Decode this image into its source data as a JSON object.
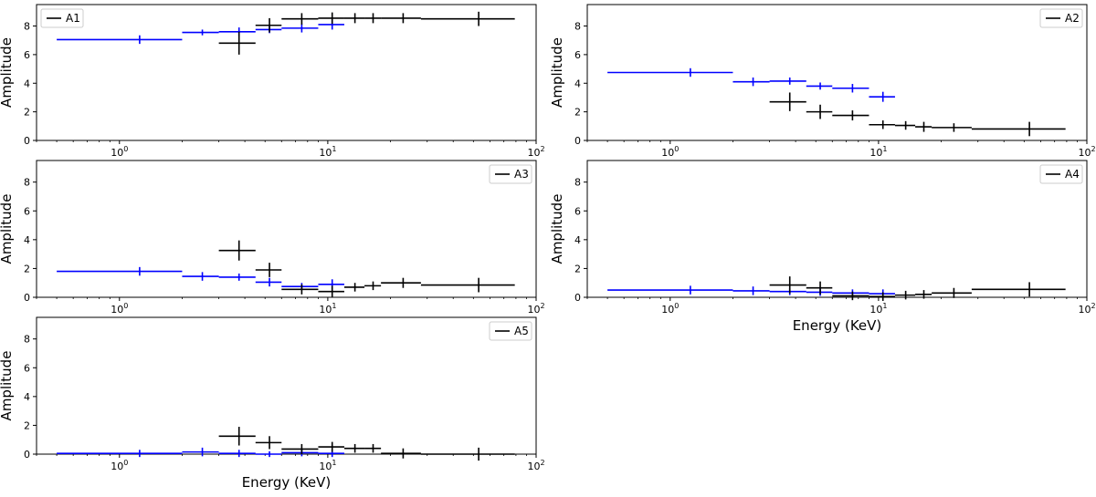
{
  "chart_data": [
    {
      "type": "scatter",
      "legend": "A1",
      "legend_placement": "top-left",
      "xlabel": "",
      "ylabel": "Amplitude",
      "xscale": "log",
      "xlim": [
        0.4,
        100
      ],
      "ylim": [
        0,
        9.5
      ],
      "yticks": [
        0,
        2,
        4,
        6,
        8
      ],
      "xtick_labels": [
        "10^0",
        "10^1",
        "10^2"
      ],
      "series": [
        {
          "color": "#0000ff",
          "points": [
            {
              "x": 1.25,
              "xlo": 0.5,
              "xhi": 2.0,
              "y": 7.05,
              "yerr": 0.3
            },
            {
              "x": 2.5,
              "xlo": 2.0,
              "xhi": 3.0,
              "y": 7.55,
              "yerr": 0.2
            },
            {
              "x": 3.75,
              "xlo": 3.0,
              "xhi": 4.5,
              "y": 7.6,
              "yerr": 0.3
            },
            {
              "x": 5.25,
              "xlo": 4.5,
              "xhi": 6.0,
              "y": 7.75,
              "yerr": 0.25
            },
            {
              "x": 7.5,
              "xlo": 6.0,
              "xhi": 9.0,
              "y": 7.85,
              "yerr": 0.3
            },
            {
              "x": 10.5,
              "xlo": 9.0,
              "xhi": 12.0,
              "y": 8.1,
              "yerr": 0.35
            }
          ]
        },
        {
          "color": "#000000",
          "points": [
            {
              "x": 3.75,
              "xlo": 3.0,
              "xhi": 4.5,
              "y": 6.8,
              "yerr": 0.8
            },
            {
              "x": 5.25,
              "xlo": 4.5,
              "xhi": 6.0,
              "y": 8.05,
              "yerr": 0.5
            },
            {
              "x": 7.5,
              "xlo": 6.0,
              "xhi": 9.0,
              "y": 8.5,
              "yerr": 0.4
            },
            {
              "x": 10.5,
              "xlo": 9.0,
              "xhi": 12.0,
              "y": 8.55,
              "yerr": 0.4
            },
            {
              "x": 13.5,
              "xlo": 12.0,
              "xhi": 15.0,
              "y": 8.55,
              "yerr": 0.35
            },
            {
              "x": 16.5,
              "xlo": 15.0,
              "xhi": 18.0,
              "y": 8.55,
              "yerr": 0.35
            },
            {
              "x": 23,
              "xlo": 18.0,
              "xhi": 28.0,
              "y": 8.55,
              "yerr": 0.35
            },
            {
              "x": 53,
              "xlo": 28.0,
              "xhi": 79.0,
              "y": 8.5,
              "yerr": 0.5
            }
          ]
        }
      ]
    },
    {
      "type": "scatter",
      "legend": "A2",
      "legend_placement": "top-right",
      "xlabel": "",
      "ylabel": "Amplitude",
      "xscale": "log",
      "xlim": [
        0.4,
        100
      ],
      "ylim": [
        0,
        9.5
      ],
      "yticks": [
        0,
        2,
        4,
        6,
        8
      ],
      "xtick_labels": [
        "10^0",
        "10^1",
        "10^2"
      ],
      "series": [
        {
          "color": "#0000ff",
          "points": [
            {
              "x": 1.25,
              "xlo": 0.5,
              "xhi": 2.0,
              "y": 4.75,
              "yerr": 0.3
            },
            {
              "x": 2.5,
              "xlo": 2.0,
              "xhi": 3.0,
              "y": 4.1,
              "yerr": 0.3
            },
            {
              "x": 3.75,
              "xlo": 3.0,
              "xhi": 4.5,
              "y": 4.15,
              "yerr": 0.25
            },
            {
              "x": 5.25,
              "xlo": 4.5,
              "xhi": 6.0,
              "y": 3.8,
              "yerr": 0.25
            },
            {
              "x": 7.5,
              "xlo": 6.0,
              "xhi": 9.0,
              "y": 3.65,
              "yerr": 0.3
            },
            {
              "x": 10.5,
              "xlo": 9.0,
              "xhi": 12.0,
              "y": 3.05,
              "yerr": 0.35
            }
          ]
        },
        {
          "color": "#000000",
          "points": [
            {
              "x": 3.75,
              "xlo": 3.0,
              "xhi": 4.5,
              "y": 2.7,
              "yerr": 0.65
            },
            {
              "x": 5.25,
              "xlo": 4.5,
              "xhi": 6.0,
              "y": 2.0,
              "yerr": 0.5
            },
            {
              "x": 7.5,
              "xlo": 6.0,
              "xhi": 9.0,
              "y": 1.75,
              "yerr": 0.35
            },
            {
              "x": 10.5,
              "xlo": 9.0,
              "xhi": 12.0,
              "y": 1.1,
              "yerr": 0.3
            },
            {
              "x": 13.5,
              "xlo": 12.0,
              "xhi": 15.0,
              "y": 1.05,
              "yerr": 0.3
            },
            {
              "x": 16.5,
              "xlo": 15.0,
              "xhi": 18.0,
              "y": 0.95,
              "yerr": 0.35
            },
            {
              "x": 23,
              "xlo": 18.0,
              "xhi": 28.0,
              "y": 0.9,
              "yerr": 0.3
            },
            {
              "x": 53,
              "xlo": 28.0,
              "xhi": 79.0,
              "y": 0.8,
              "yerr": 0.5
            }
          ]
        }
      ]
    },
    {
      "type": "scatter",
      "legend": "A3",
      "legend_placement": "top-right",
      "xlabel": "",
      "ylabel": "Amplitude",
      "xscale": "log",
      "xlim": [
        0.4,
        100
      ],
      "ylim": [
        0,
        9.5
      ],
      "yticks": [
        0,
        2,
        4,
        6,
        8
      ],
      "xtick_labels": [
        "10^0",
        "10^1",
        "10^2"
      ],
      "series": [
        {
          "color": "#0000ff",
          "points": [
            {
              "x": 1.25,
              "xlo": 0.5,
              "xhi": 2.0,
              "y": 1.8,
              "yerr": 0.3
            },
            {
              "x": 2.5,
              "xlo": 2.0,
              "xhi": 3.0,
              "y": 1.45,
              "yerr": 0.3
            },
            {
              "x": 3.75,
              "xlo": 3.0,
              "xhi": 4.5,
              "y": 1.4,
              "yerr": 0.25
            },
            {
              "x": 5.25,
              "xlo": 4.5,
              "xhi": 6.0,
              "y": 1.05,
              "yerr": 0.3
            },
            {
              "x": 7.5,
              "xlo": 6.0,
              "xhi": 9.0,
              "y": 0.75,
              "yerr": 0.25
            },
            {
              "x": 10.5,
              "xlo": 9.0,
              "xhi": 12.0,
              "y": 0.9,
              "yerr": 0.35
            }
          ]
        },
        {
          "color": "#000000",
          "points": [
            {
              "x": 3.75,
              "xlo": 3.0,
              "xhi": 4.5,
              "y": 3.25,
              "yerr": 0.7
            },
            {
              "x": 5.25,
              "xlo": 4.5,
              "xhi": 6.0,
              "y": 1.9,
              "yerr": 0.5
            },
            {
              "x": 7.5,
              "xlo": 6.0,
              "xhi": 9.0,
              "y": 0.55,
              "yerr": 0.35
            },
            {
              "x": 10.5,
              "xlo": 9.0,
              "xhi": 12.0,
              "y": 0.4,
              "yerr": 0.4
            },
            {
              "x": 13.5,
              "xlo": 12.0,
              "xhi": 15.0,
              "y": 0.7,
              "yerr": 0.3
            },
            {
              "x": 16.5,
              "xlo": 15.0,
              "xhi": 18.0,
              "y": 0.8,
              "yerr": 0.3
            },
            {
              "x": 23,
              "xlo": 18.0,
              "xhi": 28.0,
              "y": 1.0,
              "yerr": 0.35
            },
            {
              "x": 53,
              "xlo": 28.0,
              "xhi": 79.0,
              "y": 0.85,
              "yerr": 0.5
            }
          ]
        }
      ]
    },
    {
      "type": "scatter",
      "legend": "A4",
      "legend_placement": "top-right",
      "xlabel": "Energy (KeV)",
      "ylabel": "Amplitude",
      "xscale": "log",
      "xlim": [
        0.4,
        100
      ],
      "ylim": [
        0,
        9.5
      ],
      "yticks": [
        0,
        2,
        4,
        6,
        8
      ],
      "xtick_labels": [
        "10^0",
        "10^1",
        "10^2"
      ],
      "series": [
        {
          "color": "#0000ff",
          "points": [
            {
              "x": 1.25,
              "xlo": 0.5,
              "xhi": 2.0,
              "y": 0.5,
              "yerr": 0.3
            },
            {
              "x": 2.5,
              "xlo": 2.0,
              "xhi": 3.0,
              "y": 0.45,
              "yerr": 0.3
            },
            {
              "x": 3.75,
              "xlo": 3.0,
              "xhi": 4.5,
              "y": 0.4,
              "yerr": 0.25
            },
            {
              "x": 5.25,
              "xlo": 4.5,
              "xhi": 6.0,
              "y": 0.35,
              "yerr": 0.25
            },
            {
              "x": 7.5,
              "xlo": 6.0,
              "xhi": 9.0,
              "y": 0.3,
              "yerr": 0.25
            },
            {
              "x": 10.5,
              "xlo": 9.0,
              "xhi": 12.0,
              "y": 0.25,
              "yerr": 0.3
            }
          ]
        },
        {
          "color": "#000000",
          "points": [
            {
              "x": 3.75,
              "xlo": 3.0,
              "xhi": 4.5,
              "y": 0.85,
              "yerr": 0.6
            },
            {
              "x": 5.25,
              "xlo": 4.5,
              "xhi": 6.0,
              "y": 0.65,
              "yerr": 0.45
            },
            {
              "x": 7.5,
              "xlo": 6.0,
              "xhi": 9.0,
              "y": 0.1,
              "yerr": 0.3
            },
            {
              "x": 10.5,
              "xlo": 9.0,
              "xhi": 12.0,
              "y": 0.05,
              "yerr": 0.3
            },
            {
              "x": 13.5,
              "xlo": 12.0,
              "xhi": 15.0,
              "y": 0.15,
              "yerr": 0.3
            },
            {
              "x": 16.5,
              "xlo": 15.0,
              "xhi": 18.0,
              "y": 0.2,
              "yerr": 0.3
            },
            {
              "x": 23,
              "xlo": 18.0,
              "xhi": 28.0,
              "y": 0.3,
              "yerr": 0.35
            },
            {
              "x": 53,
              "xlo": 28.0,
              "xhi": 79.0,
              "y": 0.55,
              "yerr": 0.5
            }
          ]
        }
      ]
    },
    {
      "type": "scatter",
      "legend": "A5",
      "legend_placement": "top-right",
      "xlabel": "Energy (KeV)",
      "ylabel": "Amplitude",
      "xscale": "log",
      "xlim": [
        0.4,
        100
      ],
      "ylim": [
        0,
        9.5
      ],
      "yticks": [
        0,
        2,
        4,
        6,
        8
      ],
      "xtick_labels": [
        "10^0",
        "10^1",
        "10^2"
      ],
      "series": [
        {
          "color": "#0000ff",
          "points": [
            {
              "x": 1.25,
              "xlo": 0.5,
              "xhi": 2.0,
              "y": 0.05,
              "yerr": 0.25
            },
            {
              "x": 2.5,
              "xlo": 2.0,
              "xhi": 3.0,
              "y": 0.15,
              "yerr": 0.3
            },
            {
              "x": 3.75,
              "xlo": 3.0,
              "xhi": 4.5,
              "y": 0.05,
              "yerr": 0.25
            },
            {
              "x": 5.25,
              "xlo": 4.5,
              "xhi": 6.0,
              "y": 0.0,
              "yerr": 0.2
            },
            {
              "x": 7.5,
              "xlo": 6.0,
              "xhi": 9.0,
              "y": 0.1,
              "yerr": 0.25
            },
            {
              "x": 10.5,
              "xlo": 9.0,
              "xhi": 12.0,
              "y": 0.05,
              "yerr": 0.25
            }
          ]
        },
        {
          "color": "#000000",
          "points": [
            {
              "x": 3.75,
              "xlo": 3.0,
              "xhi": 4.5,
              "y": 1.25,
              "yerr": 0.65
            },
            {
              "x": 5.25,
              "xlo": 4.5,
              "xhi": 6.0,
              "y": 0.8,
              "yerr": 0.45
            },
            {
              "x": 7.5,
              "xlo": 6.0,
              "xhi": 9.0,
              "y": 0.35,
              "yerr": 0.35
            },
            {
              "x": 10.5,
              "xlo": 9.0,
              "xhi": 12.0,
              "y": 0.5,
              "yerr": 0.35
            },
            {
              "x": 13.5,
              "xlo": 12.0,
              "xhi": 15.0,
              "y": 0.4,
              "yerr": 0.3
            },
            {
              "x": 16.5,
              "xlo": 15.0,
              "xhi": 18.0,
              "y": 0.4,
              "yerr": 0.3
            },
            {
              "x": 23,
              "xlo": 18.0,
              "xhi": 28.0,
              "y": 0.05,
              "yerr": 0.35
            },
            {
              "x": 53,
              "xlo": 28.0,
              "xhi": 79.0,
              "y": 0.0,
              "yerr": 0.45
            }
          ]
        }
      ]
    }
  ]
}
